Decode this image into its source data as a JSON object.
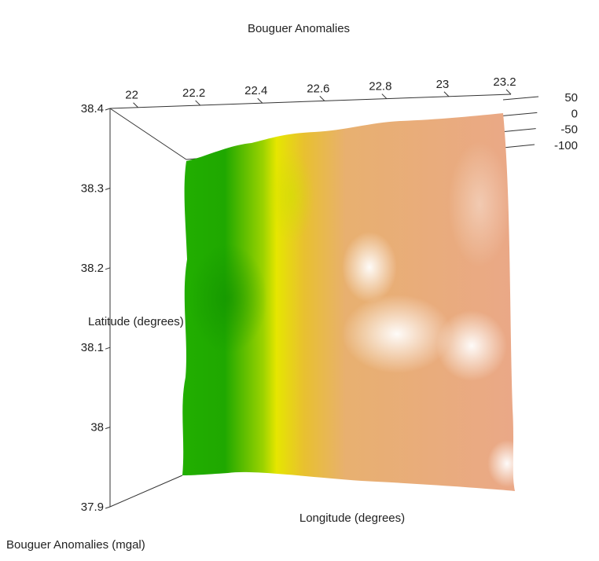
{
  "chart_data": {
    "type": "surface3d",
    "title": "Bouguer Anomalies",
    "x_label": "Longitude (degrees)",
    "y_label": "Latitude (degrees)",
    "z_label": "Bouguer Anomalies (mgal)",
    "xlim": [
      21.91,
      23.2
    ],
    "xticks": [
      22,
      22.2,
      22.4,
      22.6,
      22.8,
      23,
      23.2
    ],
    "ylim": [
      37.9,
      38.4
    ],
    "yticks": [
      37.9,
      38,
      38.1,
      38.2,
      38.3,
      38.4
    ],
    "zlim": [
      -100,
      50
    ],
    "zticks": [
      50,
      0,
      -50,
      -100
    ]
  }
}
